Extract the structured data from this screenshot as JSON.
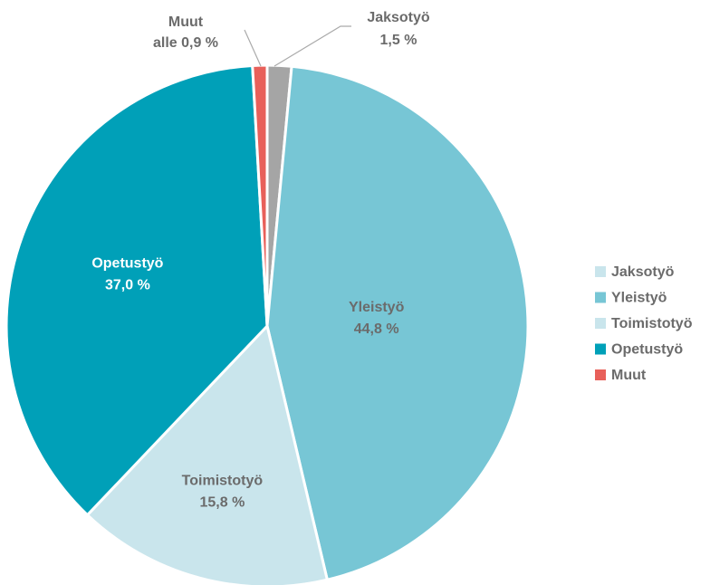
{
  "chart_data": {
    "type": "pie",
    "categories": [
      "Jaksotyö",
      "Yleistyö",
      "Toimistotyö",
      "Opetustyö",
      "Muut"
    ],
    "values": [
      1.5,
      44.8,
      15.8,
      37.0,
      0.9
    ],
    "value_labels": [
      "1,5 %",
      "44,8 %",
      "15,8 %",
      "37,0 %",
      "alle 0,9 %"
    ],
    "colors": [
      "#a5a5a5",
      "#77c6d5",
      "#c9e5ec",
      "#00a0b8",
      "#e8605a"
    ],
    "legend_colors": [
      "#c9e5ec",
      "#77c6d5",
      "#c9e5ec",
      "#00a0b8",
      "#e8605a"
    ],
    "legend": "right"
  }
}
